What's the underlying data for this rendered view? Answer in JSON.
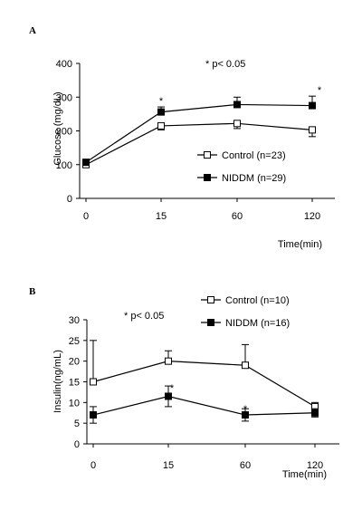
{
  "chart_data": [
    {
      "type": "line",
      "panel_label": "A",
      "annotation": "* p< 0.05",
      "xlabel": "Time(min)",
      "ylabel": "Glucose (mg/dL)",
      "categories": [
        "0",
        "15",
        "60",
        "120"
      ],
      "yticks": [
        "0",
        "100",
        "200",
        "300",
        "400"
      ],
      "ylim": [
        0,
        400
      ],
      "legend_position": "right",
      "series": [
        {
          "name": "Control (n=23)",
          "marker": "open-square",
          "values": [
            100,
            215,
            222,
            203
          ],
          "errors": [
            5,
            12,
            15,
            20
          ],
          "error_dir": "down"
        },
        {
          "name": "NIDDM (n=29)",
          "marker": "filled-square",
          "values": [
            107,
            256,
            278,
            275
          ],
          "errors": [
            6,
            15,
            22,
            28
          ],
          "error_dir": "up"
        }
      ],
      "significance": [
        {
          "category": "15",
          "label": "*"
        },
        {
          "category": "120",
          "label": "*"
        }
      ]
    },
    {
      "type": "line",
      "panel_label": "B",
      "annotation": "* p< 0.05",
      "xlabel": "Time(min)",
      "ylabel": "Insulin(ng/mL)",
      "categories": [
        "0",
        "15",
        "60",
        "120"
      ],
      "yticks": [
        "0",
        "5",
        "10",
        "15",
        "20",
        "25",
        "30"
      ],
      "ylim": [
        0,
        30
      ],
      "legend_position": "top-right",
      "series": [
        {
          "name": "Control (n=10)",
          "marker": "open-square",
          "values": [
            15,
            20,
            19,
            9
          ],
          "errors": [
            10,
            2.5,
            5,
            1
          ],
          "error_dir": "up"
        },
        {
          "name": "NIDDM (n=16)",
          "marker": "filled-square",
          "values": [
            7,
            11.5,
            7,
            7.5
          ],
          "errors": [
            2,
            2.5,
            1.5,
            1
          ],
          "error_dir": "both"
        }
      ],
      "significance": [
        {
          "category": "15",
          "label": "*"
        },
        {
          "category": "60",
          "label": "*"
        }
      ]
    }
  ]
}
